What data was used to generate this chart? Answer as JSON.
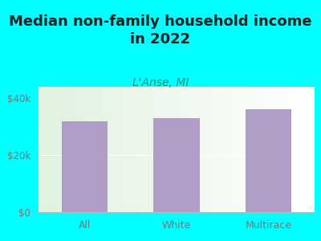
{
  "title": "Median non-family household income\nin 2022",
  "subtitle": "L'Anse, MI",
  "categories": [
    "All",
    "White",
    "Multirace"
  ],
  "values": [
    32000,
    33000,
    36000
  ],
  "bar_color": "#b09ec9",
  "background_color": "#00ffff",
  "yticks": [
    0,
    20000,
    40000
  ],
  "ytick_labels": [
    "$0",
    "$20k",
    "$40k"
  ],
  "ylim": [
    0,
    44000
  ],
  "title_fontsize": 13,
  "subtitle_fontsize": 10,
  "tick_label_color": "#777777",
  "subtitle_color": "#2a8a7a",
  "title_color": "#222222",
  "grid_color": "#e0e8e0",
  "bottom_spine_color": "#bbbbbb"
}
